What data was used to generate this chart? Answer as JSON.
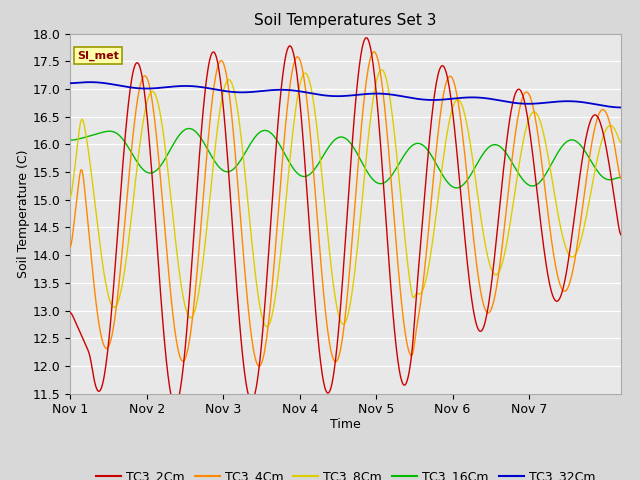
{
  "title": "Soil Temperatures Set 3",
  "xlabel": "Time",
  "ylabel": "Soil Temperature (C)",
  "ylim": [
    11.5,
    18.0
  ],
  "yticks": [
    11.5,
    12.0,
    12.5,
    13.0,
    13.5,
    14.0,
    14.5,
    15.0,
    15.5,
    16.0,
    16.5,
    17.0,
    17.5,
    18.0
  ],
  "xlim": [
    0,
    7
  ],
  "xtick_positions": [
    0,
    1,
    2,
    3,
    4,
    5,
    6
  ],
  "xtick_labels": [
    "Nov 1",
    "Nov 2",
    "Nov 3",
    "Nov 4",
    "Nov 5",
    "Nov 6",
    "Nov 7"
  ],
  "bg_color": "#d8d8d8",
  "plot_bg_color": "#e8e8e8",
  "legend_label": "SI_met",
  "series_colors": {
    "TC3_2Cm": "#cc0000",
    "TC3_4Cm": "#ff8800",
    "TC3_8Cm": "#ddcc00",
    "TC3_16Cm": "#00bb00",
    "TC3_32Cm": "#0000cc"
  },
  "series_labels": [
    "TC3_2Cm",
    "TC3_4Cm",
    "TC3_8Cm",
    "TC3_16Cm",
    "TC3_32Cm"
  ]
}
